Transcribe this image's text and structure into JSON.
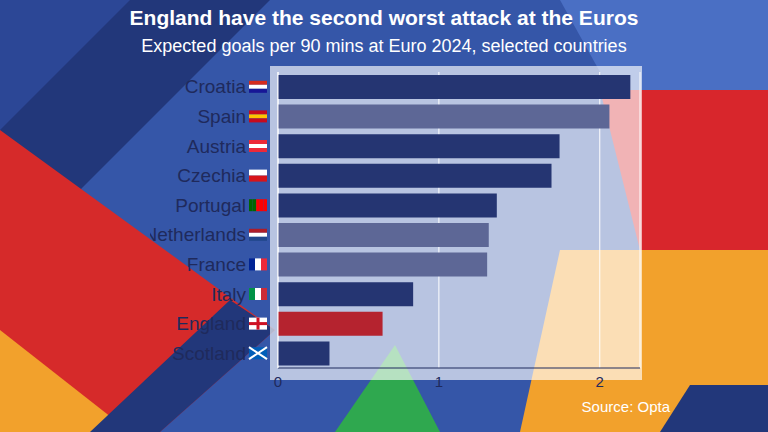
{
  "chart_data": {
    "type": "bar",
    "orientation": "horizontal",
    "title": "England have the second worst attack at the Euros",
    "subtitle": "Expected goals per 90 mins at Euro 2024, selected countries",
    "source": "Source: Opta",
    "categories": [
      "Croatia",
      "Spain",
      "Austria",
      "Czechia",
      "Portugal",
      "Netherlands",
      "France",
      "Italy",
      "England",
      "Scotland"
    ],
    "values": [
      2.19,
      2.06,
      1.75,
      1.7,
      1.36,
      1.31,
      1.3,
      0.84,
      0.65,
      0.32
    ],
    "colors": [
      "#253572",
      "#5d6796",
      "#253572",
      "#253572",
      "#253572",
      "#5d6796",
      "#5d6796",
      "#253572",
      "#b5232f",
      "#253572"
    ],
    "xlim": [
      0,
      2.25
    ],
    "xticks": [
      0,
      1,
      2
    ],
    "grid": true
  }
}
